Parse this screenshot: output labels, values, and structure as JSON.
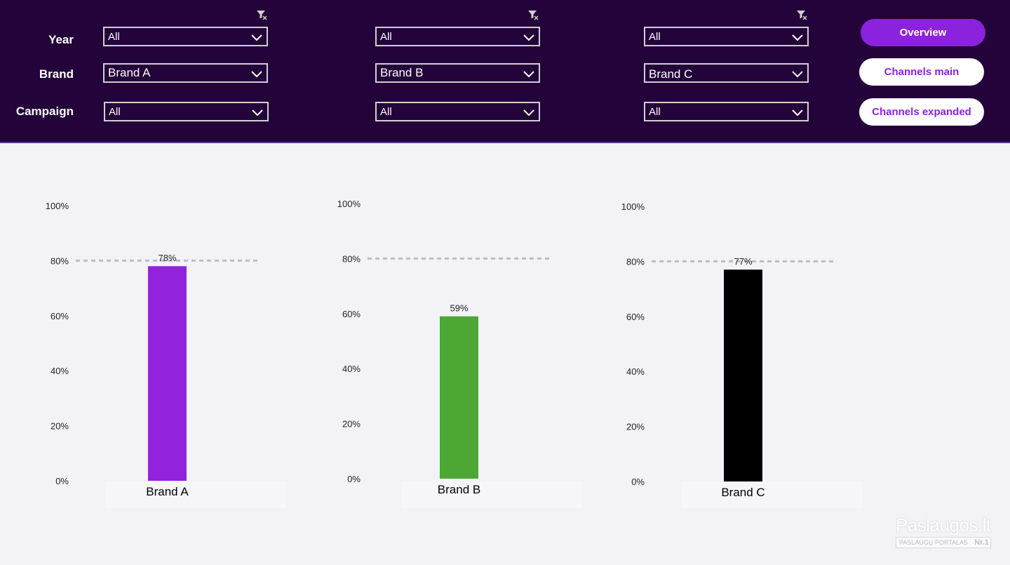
{
  "filters": {
    "row_labels": {
      "year": "Year",
      "brand": "Brand",
      "campaign": "Campaign"
    },
    "columns": [
      {
        "year": "All",
        "brand": "Brand A",
        "campaign": "All"
      },
      {
        "year": "All",
        "brand": "Brand B",
        "campaign": "All"
      },
      {
        "year": "All",
        "brand": "Brand C",
        "campaign": "All"
      }
    ]
  },
  "nav": {
    "overview": "Overview",
    "channels_main": "Channels main",
    "channels_expanded": "Channels expanded"
  },
  "colors": {
    "header_bg": "#24033a",
    "accent": "#8b22dd",
    "brand_a": "#9322dd",
    "brand_b": "#4ca735",
    "brand_c": "#000000"
  },
  "icons": {
    "filter": "clear-filter-icon",
    "dropdown": "chevron-down-icon"
  },
  "chart_data": [
    {
      "type": "bar",
      "categories": [
        "Brand A"
      ],
      "values": [
        78
      ],
      "data_labels": [
        "78%"
      ],
      "ylim": [
        0,
        100
      ],
      "y_ticks": [
        "0%",
        "20%",
        "40%",
        "60%",
        "80%",
        "100%"
      ],
      "reference_line": 80,
      "color": "#9322dd",
      "grid": false
    },
    {
      "type": "bar",
      "categories": [
        "Brand B"
      ],
      "values": [
        59
      ],
      "data_labels": [
        "59%"
      ],
      "ylim": [
        0,
        100
      ],
      "y_ticks": [
        "0%",
        "20%",
        "40%",
        "60%",
        "80%",
        "100%"
      ],
      "reference_line": 80,
      "color": "#4ca735",
      "grid": false
    },
    {
      "type": "bar",
      "categories": [
        "Brand C"
      ],
      "values": [
        77
      ],
      "data_labels": [
        "77%"
      ],
      "ylim": [
        0,
        100
      ],
      "y_ticks": [
        "0%",
        "20%",
        "40%",
        "60%",
        "80%",
        "100%"
      ],
      "reference_line": 80,
      "color": "#000000",
      "grid": false
    }
  ],
  "watermark": {
    "brand": "Paslaugos.lt",
    "tagline": "PASLAUGŲ PORTALAS",
    "badge": "Nr.1"
  }
}
